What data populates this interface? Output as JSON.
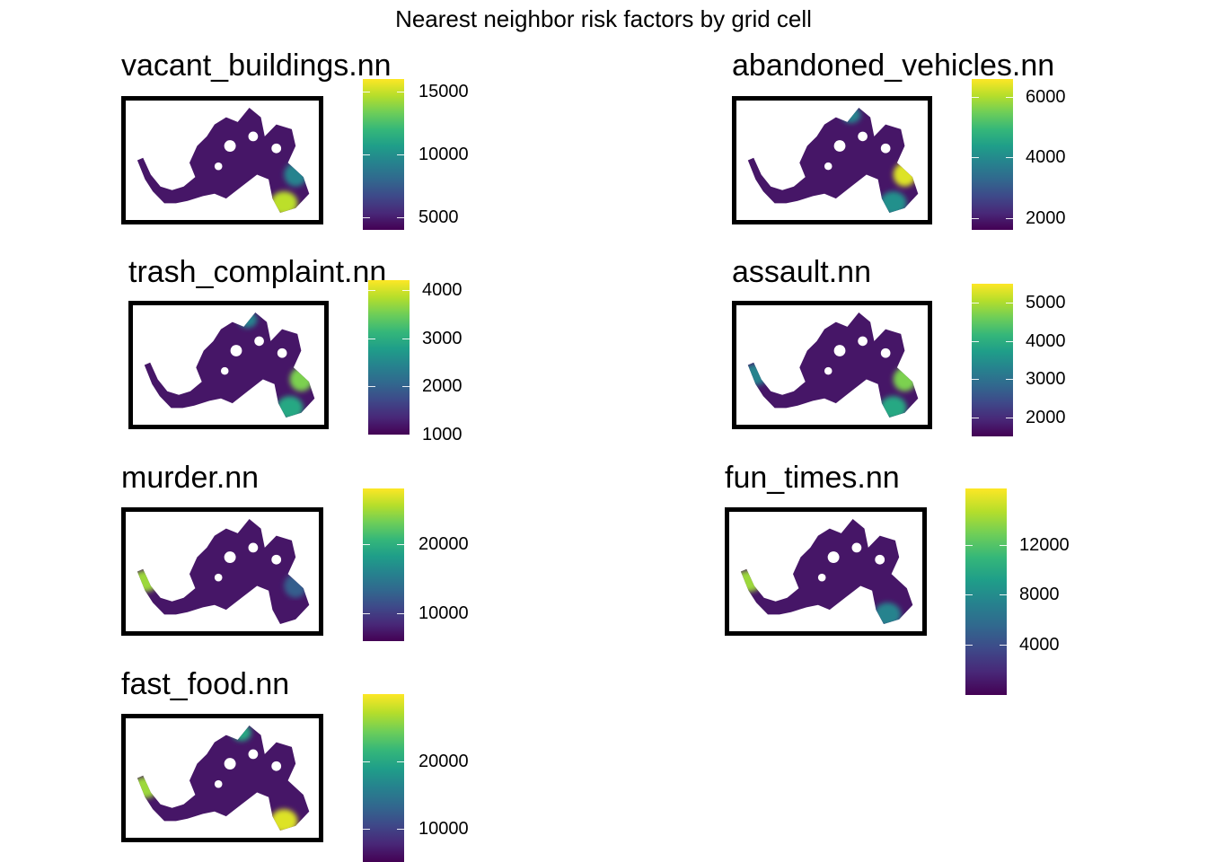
{
  "title": "Nearest neighbor risk factors by grid cell",
  "colormap": [
    "#440154",
    "#482878",
    "#3e4989",
    "#31688e",
    "#26828e",
    "#1f9e89",
    "#35b779",
    "#6ece58",
    "#b5de2b",
    "#fde725"
  ],
  "panels": [
    {
      "name": "vacant_buildings.nn",
      "legend_min": 4000,
      "legend_max": 16000,
      "ticks": [
        {
          "value": 5000,
          "label": "5000"
        },
        {
          "value": 10000,
          "label": "10000"
        },
        {
          "value": 15000,
          "label": "15000"
        }
      ],
      "hotspots": [
        {
          "region": "southeast arm",
          "level": 0.9
        },
        {
          "region": "east edge",
          "level": 0.45
        }
      ]
    },
    {
      "name": "abandoned_vehicles.nn",
      "legend_min": 1600,
      "legend_max": 6600,
      "ticks": [
        {
          "value": 2000,
          "label": "2000"
        },
        {
          "value": 4000,
          "label": "4000"
        },
        {
          "value": 6000,
          "label": "6000"
        }
      ],
      "hotspots": [
        {
          "region": "east edge",
          "level": 0.95
        },
        {
          "region": "north lobe",
          "level": 0.45
        },
        {
          "region": "southeast arm",
          "level": 0.5
        }
      ]
    },
    {
      "name": "trash_complaint.nn",
      "legend_min": 1000,
      "legend_max": 4200,
      "ticks": [
        {
          "value": 1000,
          "label": "1000"
        },
        {
          "value": 2000,
          "label": "2000"
        },
        {
          "value": 3000,
          "label": "3000"
        },
        {
          "value": 4000,
          "label": "4000"
        }
      ],
      "hotspots": [
        {
          "region": "east edge",
          "level": 0.8
        },
        {
          "region": "north lobe",
          "level": 0.45
        },
        {
          "region": "southeast arm",
          "level": 0.6
        }
      ]
    },
    {
      "name": "assault.nn",
      "legend_min": 1500,
      "legend_max": 5500,
      "ticks": [
        {
          "value": 2000,
          "label": "2000"
        },
        {
          "value": 3000,
          "label": "3000"
        },
        {
          "value": 4000,
          "label": "4000"
        },
        {
          "value": 5000,
          "label": "5000"
        }
      ],
      "hotspots": [
        {
          "region": "east edge",
          "level": 0.8
        },
        {
          "region": "west tail",
          "level": 0.45
        },
        {
          "region": "southeast arm",
          "level": 0.6
        }
      ]
    },
    {
      "name": "murder.nn",
      "legend_min": 6000,
      "legend_max": 28000,
      "ticks": [
        {
          "value": 10000,
          "label": "10000"
        },
        {
          "value": 20000,
          "label": "20000"
        }
      ],
      "hotspots": [
        {
          "region": "west tail",
          "level": 0.85
        },
        {
          "region": "east edge",
          "level": 0.3
        }
      ]
    },
    {
      "name": "fun_times.nn",
      "legend_min": 0,
      "legend_max": 16500,
      "ticks": [
        {
          "value": 4000,
          "label": "4000"
        },
        {
          "value": 8000,
          "label": "8000"
        },
        {
          "value": 12000,
          "label": "12000"
        }
      ],
      "hotspots": [
        {
          "region": "west tail",
          "level": 0.85
        },
        {
          "region": "southeast arm",
          "level": 0.45
        }
      ]
    },
    {
      "name": "fast_food.nn",
      "legend_min": 5000,
      "legend_max": 30000,
      "ticks": [
        {
          "value": 10000,
          "label": "10000"
        },
        {
          "value": 20000,
          "label": "20000"
        }
      ],
      "hotspots": [
        {
          "region": "southeast arm",
          "level": 0.95
        },
        {
          "region": "west tail",
          "level": 0.85
        },
        {
          "region": "north lobe",
          "level": 0.6
        }
      ]
    }
  ]
}
